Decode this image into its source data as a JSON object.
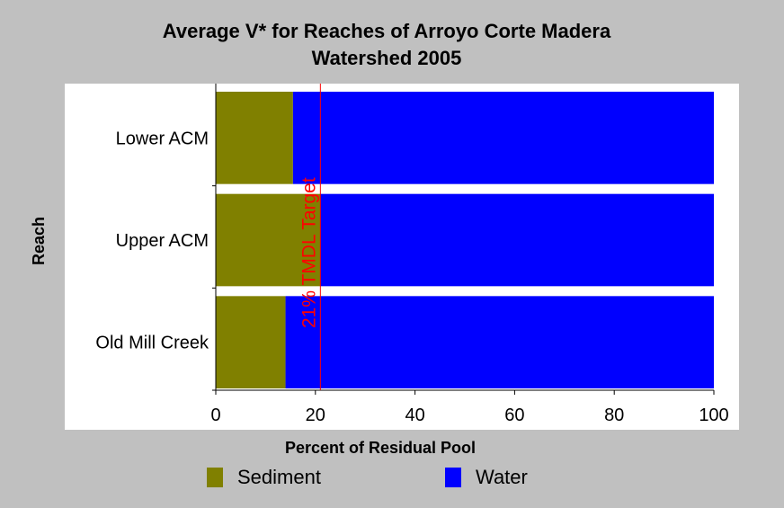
{
  "colors": {
    "background": "#c0c0c0",
    "plot_background": "#ffffff",
    "sediment": "#808000",
    "water": "#0000ff",
    "target_line": "#ff0000"
  },
  "chart_data": {
    "type": "bar",
    "orientation": "horizontal",
    "stacked": true,
    "title": [
      "Average V* for Reaches of Arroyo Corte Madera",
      "Watershed 2005"
    ],
    "xlabel": "Percent of Residual Pool",
    "ylabel": "Reach",
    "xlim": [
      0,
      100
    ],
    "xticks": [
      0,
      20,
      40,
      60,
      80,
      100
    ],
    "categories": [
      "Lower ACM",
      "Upper ACM",
      "Old Mill Creek"
    ],
    "series": [
      {
        "name": "Sediment",
        "color": "#808000",
        "values": [
          15.5,
          21,
          14
        ]
      },
      {
        "name": "Water",
        "color": "#0000ff",
        "values": [
          84.5,
          79,
          86
        ]
      }
    ],
    "reference_line": {
      "x": 21,
      "label": "21% TMDL Target",
      "color": "#ff0000"
    },
    "legend": {
      "placement": "bottom",
      "items": [
        "Sediment",
        "Water"
      ]
    },
    "grid": false
  }
}
